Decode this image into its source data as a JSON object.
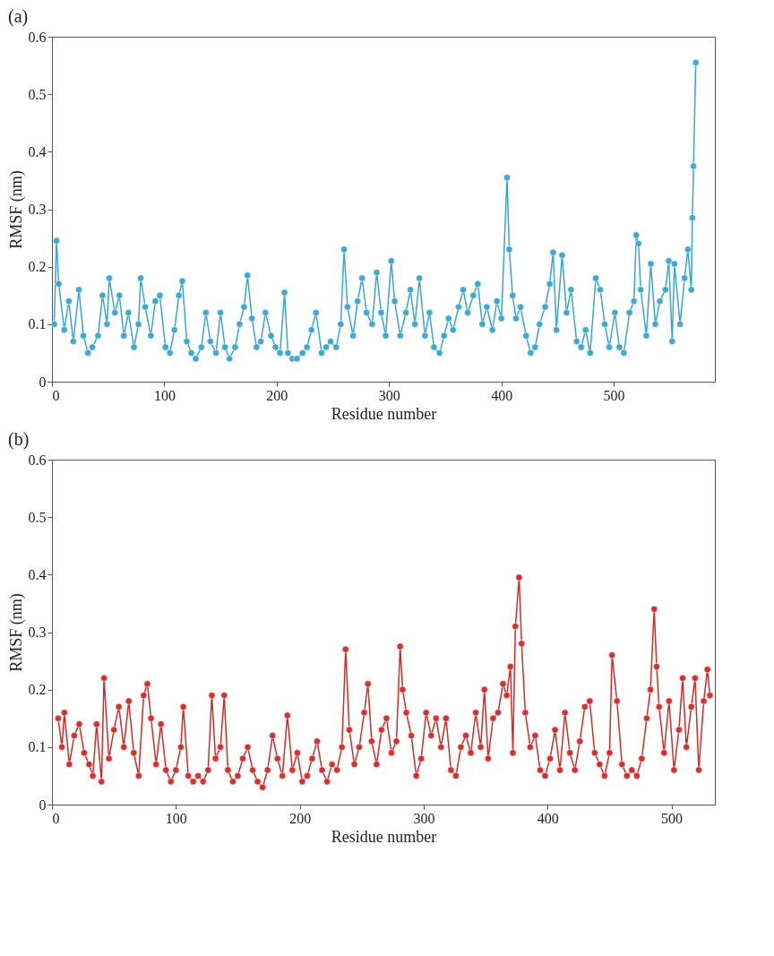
{
  "chart_data": [
    {
      "type": "line",
      "title": "(a)",
      "xlabel": "Residue number",
      "ylabel": "RMSF (nm)",
      "xlim": [
        0,
        590
      ],
      "ylim": [
        0,
        0.6
      ],
      "xticks": [
        0,
        100,
        200,
        300,
        400,
        500
      ],
      "yticks": [
        0,
        0.1,
        0.2,
        0.3,
        0.4,
        0.5,
        0.6
      ],
      "marker": "circle",
      "line_style": "solid",
      "x": [
        2,
        4,
        6,
        11,
        15,
        19,
        24,
        28,
        32,
        36,
        41,
        45,
        49,
        51,
        56,
        60,
        64,
        68,
        73,
        77,
        79,
        83,
        88,
        92,
        96,
        101,
        105,
        109,
        113,
        116,
        120,
        124,
        128,
        133,
        137,
        141,
        146,
        150,
        154,
        158,
        163,
        167,
        171,
        174,
        178,
        182,
        186,
        190,
        195,
        199,
        203,
        207,
        210,
        214,
        218,
        223,
        227,
        231,
        235,
        240,
        244,
        248,
        253,
        257,
        260,
        263,
        268,
        272,
        276,
        280,
        285,
        289,
        293,
        297,
        302,
        305,
        310,
        315,
        319,
        323,
        327,
        332,
        336,
        340,
        345,
        349,
        353,
        357,
        362,
        366,
        370,
        375,
        379,
        383,
        387,
        392,
        396,
        400,
        405,
        407,
        410,
        413,
        417,
        422,
        426,
        430,
        434,
        439,
        443,
        446,
        449,
        454,
        458,
        462,
        467,
        471,
        475,
        479,
        484,
        488,
        492,
        496,
        501,
        505,
        509,
        514,
        518,
        520,
        522,
        524,
        529,
        533,
        537,
        541,
        546,
        549,
        552,
        554,
        559,
        563,
        566,
        569,
        570,
        571,
        573
      ],
      "series": [
        {
          "color": "#3aa6d0",
          "values": [
            0.1,
            0.245,
            0.17,
            0.09,
            0.14,
            0.07,
            0.16,
            0.08,
            0.05,
            0.06,
            0.08,
            0.15,
            0.1,
            0.18,
            0.12,
            0.15,
            0.08,
            0.12,
            0.06,
            0.1,
            0.18,
            0.13,
            0.08,
            0.14,
            0.15,
            0.06,
            0.05,
            0.09,
            0.15,
            0.175,
            0.07,
            0.05,
            0.04,
            0.06,
            0.12,
            0.07,
            0.05,
            0.12,
            0.06,
            0.04,
            0.06,
            0.1,
            0.13,
            0.185,
            0.11,
            0.06,
            0.07,
            0.12,
            0.08,
            0.06,
            0.05,
            0.155,
            0.05,
            0.04,
            0.04,
            0.05,
            0.06,
            0.09,
            0.12,
            0.05,
            0.06,
            0.07,
            0.06,
            0.1,
            0.23,
            0.13,
            0.08,
            0.14,
            0.18,
            0.12,
            0.1,
            0.19,
            0.12,
            0.08,
            0.21,
            0.14,
            0.08,
            0.12,
            0.16,
            0.1,
            0.18,
            0.08,
            0.12,
            0.06,
            0.05,
            0.08,
            0.11,
            0.09,
            0.13,
            0.16,
            0.12,
            0.15,
            0.17,
            0.1,
            0.13,
            0.09,
            0.14,
            0.11,
            0.355,
            0.23,
            0.15,
            0.11,
            0.13,
            0.08,
            0.05,
            0.06,
            0.1,
            0.13,
            0.17,
            0.225,
            0.09,
            0.22,
            0.12,
            0.16,
            0.07,
            0.06,
            0.09,
            0.05,
            0.18,
            0.16,
            0.1,
            0.06,
            0.12,
            0.06,
            0.05,
            0.12,
            0.14,
            0.255,
            0.24,
            0.16,
            0.08,
            0.205,
            0.1,
            0.14,
            0.16,
            0.21,
            0.07,
            0.205,
            0.1,
            0.18,
            0.23,
            0.16,
            0.285,
            0.375,
            0.555
          ]
        }
      ]
    },
    {
      "type": "line",
      "title": "(b)",
      "xlabel": "Residue number",
      "ylabel": "RMSF (nm)",
      "xlim": [
        0,
        535
      ],
      "ylim": [
        0,
        0.6
      ],
      "xticks": [
        0,
        100,
        200,
        300,
        400,
        500
      ],
      "yticks": [
        0,
        0.1,
        0.2,
        0.3,
        0.4,
        0.5,
        0.6
      ],
      "marker": "circle",
      "line_style": "solid",
      "x": [
        5,
        8,
        10,
        14,
        18,
        22,
        26,
        30,
        33,
        36,
        40,
        42,
        46,
        50,
        54,
        58,
        62,
        66,
        70,
        74,
        77,
        80,
        84,
        88,
        92,
        96,
        100,
        104,
        106,
        110,
        114,
        118,
        122,
        126,
        129,
        132,
        136,
        139,
        142,
        146,
        150,
        154,
        158,
        162,
        166,
        170,
        174,
        178,
        182,
        186,
        190,
        194,
        198,
        202,
        206,
        210,
        214,
        218,
        222,
        226,
        230,
        234,
        237,
        240,
        244,
        248,
        252,
        255,
        258,
        262,
        266,
        270,
        274,
        278,
        281,
        283,
        286,
        290,
        294,
        298,
        302,
        306,
        310,
        314,
        318,
        322,
        326,
        330,
        334,
        338,
        342,
        346,
        349,
        352,
        356,
        360,
        364,
        367,
        370,
        372,
        374,
        377,
        379,
        382,
        386,
        390,
        394,
        398,
        402,
        406,
        410,
        414,
        418,
        422,
        426,
        430,
        434,
        438,
        442,
        446,
        450,
        452,
        456,
        460,
        464,
        468,
        472,
        476,
        480,
        483,
        486,
        488,
        490,
        494,
        498,
        502,
        506,
        509,
        512,
        516,
        519,
        522,
        526,
        529,
        531
      ],
      "series": [
        {
          "color": "#d42a2a",
          "values": [
            0.15,
            0.1,
            0.16,
            0.07,
            0.12,
            0.14,
            0.09,
            0.07,
            0.05,
            0.14,
            0.04,
            0.22,
            0.08,
            0.13,
            0.17,
            0.1,
            0.18,
            0.09,
            0.05,
            0.19,
            0.21,
            0.15,
            0.07,
            0.14,
            0.06,
            0.04,
            0.06,
            0.1,
            0.17,
            0.05,
            0.04,
            0.05,
            0.04,
            0.06,
            0.19,
            0.08,
            0.1,
            0.19,
            0.06,
            0.04,
            0.05,
            0.08,
            0.1,
            0.06,
            0.04,
            0.03,
            0.06,
            0.12,
            0.08,
            0.05,
            0.155,
            0.06,
            0.09,
            0.04,
            0.05,
            0.08,
            0.11,
            0.06,
            0.04,
            0.07,
            0.06,
            0.1,
            0.27,
            0.13,
            0.07,
            0.1,
            0.16,
            0.21,
            0.11,
            0.07,
            0.13,
            0.15,
            0.09,
            0.11,
            0.275,
            0.2,
            0.16,
            0.12,
            0.05,
            0.08,
            0.16,
            0.12,
            0.15,
            0.1,
            0.15,
            0.06,
            0.05,
            0.1,
            0.12,
            0.09,
            0.16,
            0.1,
            0.2,
            0.08,
            0.15,
            0.16,
            0.21,
            0.19,
            0.24,
            0.09,
            0.31,
            0.395,
            0.28,
            0.16,
            0.1,
            0.12,
            0.06,
            0.05,
            0.08,
            0.13,
            0.06,
            0.16,
            0.09,
            0.06,
            0.11,
            0.17,
            0.18,
            0.09,
            0.07,
            0.05,
            0.09,
            0.26,
            0.18,
            0.07,
            0.05,
            0.06,
            0.05,
            0.08,
            0.15,
            0.2,
            0.34,
            0.24,
            0.17,
            0.09,
            0.18,
            0.06,
            0.13,
            0.22,
            0.1,
            0.17,
            0.22,
            0.06,
            0.18,
            0.235,
            0.19
          ]
        }
      ]
    }
  ]
}
